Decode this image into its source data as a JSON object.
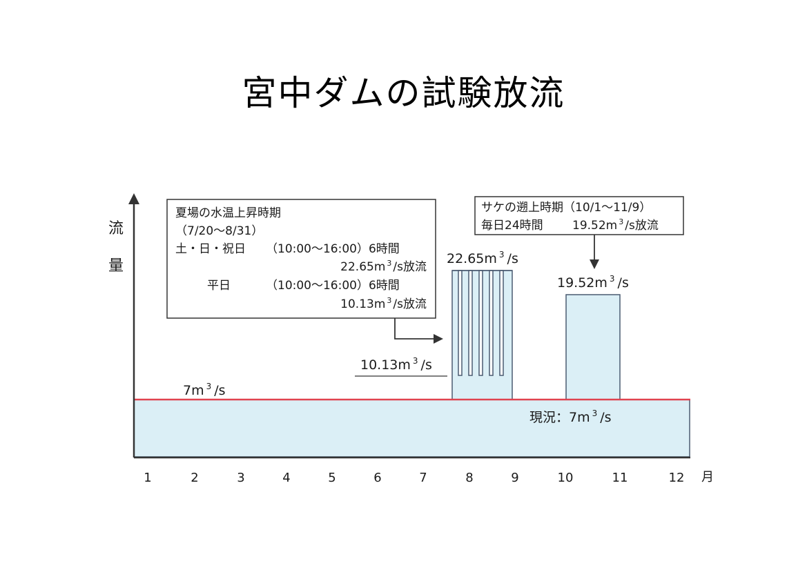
{
  "title": "宮中ダムの試験放流",
  "axis": {
    "y_label_chars": [
      "流",
      "量"
    ],
    "x_unit": "月",
    "months": [
      "1",
      "2",
      "3",
      "4",
      "5",
      "6",
      "7",
      "8",
      "9",
      "10",
      "11",
      "12"
    ]
  },
  "colors": {
    "baseline_fill": "#dbeff6",
    "baseline_line": "#e0424f",
    "release_fill": "#dbeff6",
    "outline": "#4a5a70"
  },
  "baseline": {
    "value_label": "7m",
    "value_unit_sup": "3",
    "value_unit_tail": "/s",
    "status_label": "現況：7m",
    "status_unit_sup": "3",
    "status_unit_tail": "/s"
  },
  "summer": {
    "box_lines": {
      "line1": "夏場の水温上昇時期",
      "line2": "（7/20～8/31）",
      "line3_day": "土・日・祝日",
      "line3_time": "（10:00～16:00）6時間",
      "line4_pre": "22.65m",
      "line4_sup": "3",
      "line4_post": "/s放流",
      "line5_day": "平日",
      "line5_time": "（10:00～16:00）6時間",
      "line6_pre": "10.13m",
      "line6_sup": "3",
      "line6_post": "/s放流"
    },
    "peak_label_pre": "22.65m",
    "peak_label_sup": "3",
    "peak_label_post": "/s",
    "low_label_pre": "10.13m",
    "low_label_sup": "3",
    "low_label_post": "/s"
  },
  "salmon": {
    "box_lines": {
      "line1": "サケの遡上時期（10/1～11/9）",
      "line2_a": "毎日24時間",
      "line2_pre": "19.52m",
      "line2_sup": "3",
      "line2_post": "/s放流"
    },
    "label_pre": "19.52m",
    "label_sup": "3",
    "label_post": "/s"
  }
}
